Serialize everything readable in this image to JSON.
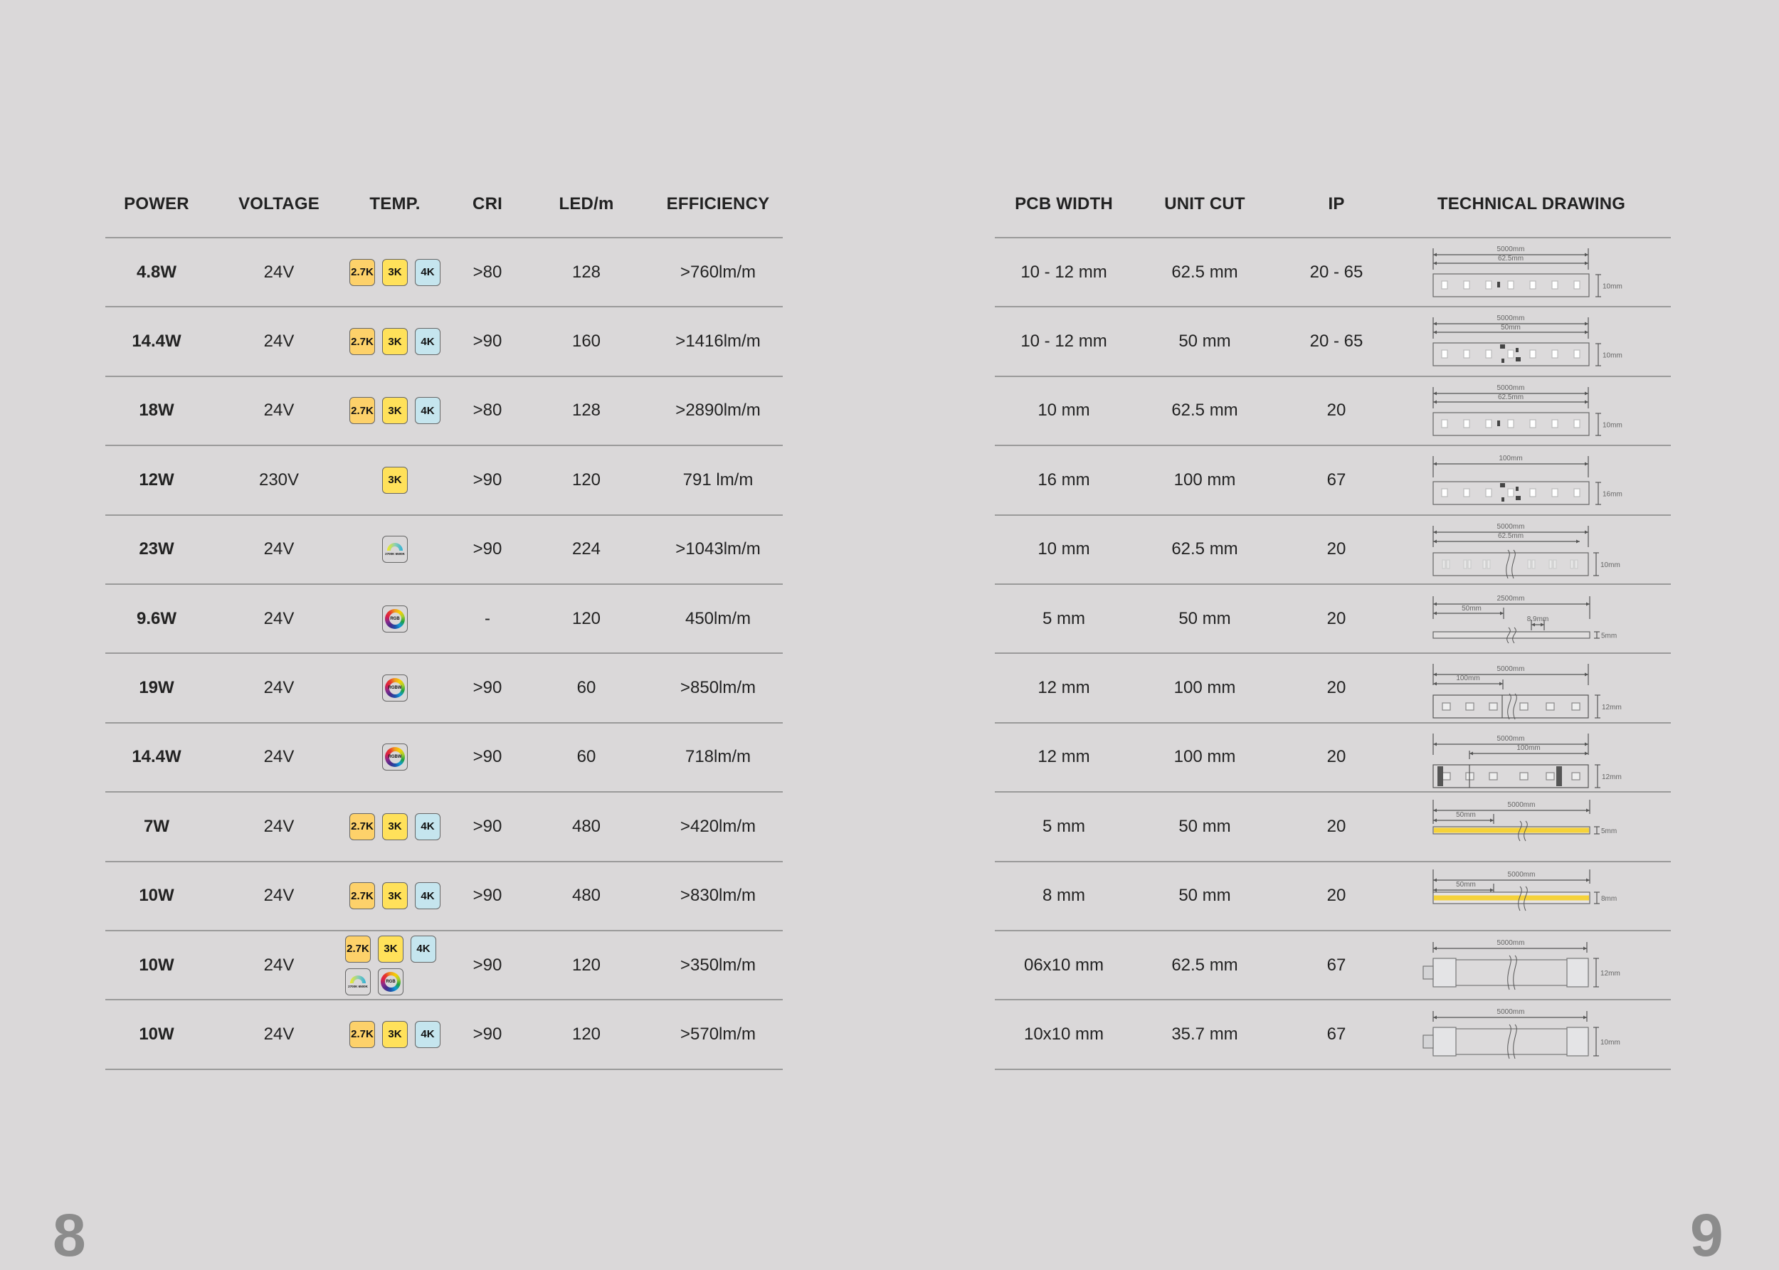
{
  "left_table": {
    "headers": [
      "POWER",
      "VOLTAGE",
      "TEMP.",
      "CRI",
      "LED/m",
      "EFFICIENCY"
    ],
    "rows": [
      {
        "power": "4.8W",
        "voltage": "24V",
        "temps": [
          "2.7K",
          "3K",
          "4K"
        ],
        "cri": ">80",
        "led": "128",
        "efficiency": ">760lm/m"
      },
      {
        "power": "14.4W",
        "voltage": "24V",
        "temps": [
          "2.7K",
          "3K",
          "4K"
        ],
        "cri": ">90",
        "led": "160",
        "efficiency": ">1416lm/m"
      },
      {
        "power": "18W",
        "voltage": "24V",
        "temps": [
          "2.7K",
          "3K",
          "4K"
        ],
        "cri": ">80",
        "led": "128",
        "efficiency": ">2890lm/m"
      },
      {
        "power": "12W",
        "voltage": "230V",
        "temps": [
          "3K"
        ],
        "cri": ">90",
        "led": "120",
        "efficiency": "791 lm/m"
      },
      {
        "power": "23W",
        "voltage": "24V",
        "temps": [
          "cct"
        ],
        "cri": ">90",
        "led": "224",
        "efficiency": ">1043lm/m"
      },
      {
        "power": "9.6W",
        "voltage": "24V",
        "temps": [
          "RGB"
        ],
        "cri": "-",
        "led": "120",
        "efficiency": "450lm/m"
      },
      {
        "power": "19W",
        "voltage": "24V",
        "temps": [
          "RGBW"
        ],
        "cri": ">90",
        "led": "60",
        "efficiency": ">850lm/m"
      },
      {
        "power": "14.4W",
        "voltage": "24V",
        "temps": [
          "RGBW"
        ],
        "cri": ">90",
        "led": "60",
        "efficiency": "718lm/m"
      },
      {
        "power": "7W",
        "voltage": "24V",
        "temps": [
          "2.7K",
          "3K",
          "4K"
        ],
        "cri": ">90",
        "led": "480",
        "efficiency": ">420lm/m"
      },
      {
        "power": "10W",
        "voltage": "24V",
        "temps": [
          "2.7K",
          "3K",
          "4K"
        ],
        "cri": ">90",
        "led": "480",
        "efficiency": ">830lm/m"
      },
      {
        "power": "10W",
        "voltage": "24V",
        "temps": [
          "2.7K",
          "3K",
          "4K",
          "cct",
          "RGB"
        ],
        "cri": ">90",
        "led": "120",
        "efficiency": ">350lm/m"
      },
      {
        "power": "10W",
        "voltage": "24V",
        "temps": [
          "2.7K",
          "3K",
          "4K"
        ],
        "cri": ">90",
        "led": "120",
        "efficiency": ">570lm/m"
      }
    ]
  },
  "cct_icon": {
    "warm": "2700K",
    "cool": "6500K"
  },
  "right_table": {
    "headers": [
      "PCB WIDTH",
      "UNIT CUT",
      "IP",
      "TECHNICAL DRAWING"
    ],
    "rows": [
      {
        "pcb": "10 - 12 mm",
        "cut": "62.5 mm",
        "ip": "20 - 65",
        "drawing": {
          "type": "smd",
          "labels": [
            "5000mm",
            "62.5mm"
          ],
          "height": "10mm"
        }
      },
      {
        "pcb": "10 - 12 mm",
        "cut": "50 mm",
        "ip": "20 - 65",
        "drawing": {
          "type": "smd2",
          "labels": [
            "5000mm",
            "50mm"
          ],
          "height": "10mm"
        }
      },
      {
        "pcb": "10 mm",
        "cut": "62.5 mm",
        "ip": "20",
        "drawing": {
          "type": "smd",
          "labels": [
            "5000mm",
            "62.5mm"
          ],
          "height": "10mm"
        }
      },
      {
        "pcb": "16 mm",
        "cut": "100 mm",
        "ip": "67",
        "drawing": {
          "type": "smd2",
          "labels": [
            "100mm"
          ],
          "height": "16mm"
        }
      },
      {
        "pcb": "10 mm",
        "cut": "62.5 mm",
        "ip": "20",
        "drawing": {
          "type": "break",
          "labels": [
            "5000mm",
            "62.5mm"
          ],
          "height": "10mm"
        }
      },
      {
        "pcb": "5 mm",
        "cut": "50 mm",
        "ip": "20",
        "drawing": {
          "type": "thin",
          "labels": [
            "2500mm",
            "50mm",
            "8.9mm"
          ],
          "height": "5mm"
        }
      },
      {
        "pcb": "12 mm",
        "cut": "100 mm",
        "ip": "20",
        "drawing": {
          "type": "rgb",
          "labels": [
            "5000mm",
            "100mm"
          ],
          "height": "12mm"
        }
      },
      {
        "pcb": "12 mm",
        "cut": "100 mm",
        "ip": "20",
        "drawing": {
          "type": "rgbw",
          "labels": [
            "5000mm",
            "100mm"
          ],
          "height": "12mm"
        }
      },
      {
        "pcb": "5 mm",
        "cut": "50 mm",
        "ip": "20",
        "drawing": {
          "type": "cob5",
          "labels": [
            "5000mm",
            "50mm"
          ],
          "height": "5mm"
        }
      },
      {
        "pcb": "8 mm",
        "cut": "50 mm",
        "ip": "20",
        "drawing": {
          "type": "cob8",
          "labels": [
            "5000mm",
            "50mm"
          ],
          "height": "8mm"
        }
      },
      {
        "pcb": "06x10 mm",
        "cut": "62.5 mm",
        "ip": "67",
        "drawing": {
          "type": "neon",
          "labels": [
            "5000mm"
          ],
          "height": "12mm"
        }
      },
      {
        "pcb": "10x10 mm",
        "cut": "35.7 mm",
        "ip": "67",
        "drawing": {
          "type": "neon",
          "labels": [
            "5000mm"
          ],
          "height": "10mm"
        }
      }
    ]
  },
  "page_numbers": {
    "left": "8",
    "right": "9"
  },
  "colors": {
    "background": "#dad8d9",
    "badge_27k": "#fdd16a",
    "badge_3k": "#ffe15a",
    "badge_4k": "#c5e5ee",
    "cob": "#f5d23a",
    "rule": "#9a9a9a"
  }
}
